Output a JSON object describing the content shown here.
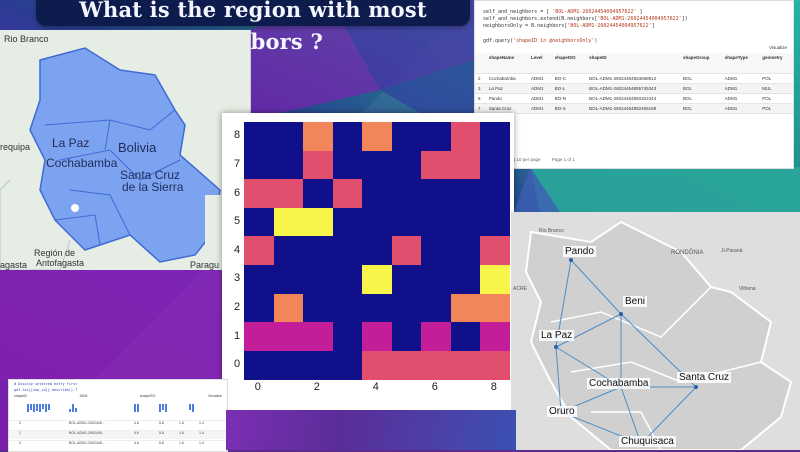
{
  "title": "What is the region with most neighbors ?",
  "map_top_left": {
    "labels": {
      "rio_branco": "Rio Branco",
      "la_paz": "La Paz",
      "bolivia": "Bolivia",
      "cochabamba": "Cochabamba",
      "santa_cruz": "Santa Cruz",
      "de_la_sierra": "de la Sierra",
      "arequipa": "requipa",
      "pagasta": "agasta",
      "region_antofagasta": "Región de",
      "antofagasta": "Antofagasta",
      "paragu": "Paragu"
    },
    "colors": {
      "fill": "#7ca3ef",
      "stroke": "#3f6ad6"
    }
  },
  "code_panel": {
    "lines": [
      [
        "self_and_neighbors = [ ",
        "'BOL-ADM1-26024454004957622'",
        " ]"
      ],
      [
        "self_and_neighbors.extend(B.neighbors[",
        "'BOL-ADM1-26024454004957622'",
        "])"
      ],
      [
        "neighborsOnly = B.neighbors[",
        "'BOL-ADM1-26024454004957622'",
        "]"
      ]
    ],
    "query": [
      "gdf.query(",
      "'shapeID in @neighborsOnly'",
      ")"
    ],
    "visualize_label": "Visualize",
    "columns": [
      "",
      "shapeName",
      "Level",
      "shapeISO",
      "shapeID",
      "shapeGroup",
      "shapeType",
      "geometry"
    ],
    "rows": [
      [
        "2",
        "Cochabamba",
        "ADM1",
        "BO-C",
        "BOL-ADM1-26024454563658912",
        "BOL",
        "ADM1",
        "POL"
      ],
      [
        "3",
        "La Paz",
        "ADM1",
        "BO-L",
        "BOL-ADM1-26024454955745343",
        "BOL",
        "ADM1",
        "MUL"
      ],
      [
        "5",
        "Pando",
        "ADM1",
        "BO-N",
        "BOL-ADM1-26024454850322344",
        "BOL",
        "ADM1",
        "POL"
      ],
      [
        "7",
        "Santa Cruz",
        "ADM1",
        "BO-S",
        "BOL-ADM1-26024454882466198",
        "BOL",
        "ADM1",
        "POL"
      ]
    ],
    "footer": "4 rows, showing 10 per page",
    "pager": "Page 1 of 1"
  },
  "chart_data": {
    "type": "heatmap",
    "title": "",
    "xlabel": "",
    "ylabel": "",
    "x_ticks": [
      "0",
      "2",
      "4",
      "6",
      "8"
    ],
    "y_ticks": [
      "0",
      "1",
      "2",
      "3",
      "4",
      "5",
      "6",
      "7",
      "8"
    ],
    "grid": false,
    "colormap": {
      "0": "#10108a",
      "1": "#c41d9a",
      "2": "#e24f6e",
      "3": "#f2855a",
      "4": "#f7f54a"
    },
    "matrix": [
      [
        0,
        0,
        3,
        0,
        3,
        0,
        0,
        2,
        0
      ],
      [
        0,
        0,
        2,
        0,
        0,
        0,
        2,
        2,
        0
      ],
      [
        2,
        2,
        0,
        2,
        0,
        0,
        0,
        0,
        0
      ],
      [
        0,
        4,
        4,
        0,
        0,
        0,
        0,
        0,
        0
      ],
      [
        2,
        0,
        0,
        0,
        0,
        2,
        0,
        0,
        2
      ],
      [
        0,
        0,
        0,
        0,
        4,
        0,
        0,
        0,
        4
      ],
      [
        0,
        3,
        0,
        0,
        0,
        0,
        0,
        3,
        3
      ],
      [
        1,
        1,
        1,
        0,
        1,
        0,
        1,
        0,
        1
      ],
      [
        0,
        0,
        0,
        0,
        2,
        2,
        2,
        2,
        2
      ]
    ]
  },
  "map_bottom_right": {
    "cities": [
      "Pando",
      "Beni",
      "La Paz",
      "Cochabamba",
      "Santa Cruz",
      "Oruro",
      "Chuquisaca"
    ],
    "small_labels": [
      "Rio Branco",
      "RONDÔNIA",
      "ACRE",
      "Vilhena",
      "Ji-Paraná"
    ]
  },
  "notebook_bottom_left": {
    "code_line1": "# Display selected entry first",
    "code_line2": "gdf.loc[[shp_id]].describe().T",
    "columns": [
      "",
      "shapeID",
      "ADM",
      "shapeISO",
      "",
      "",
      "",
      "",
      "Visualize"
    ],
    "rows": [
      [
        "0",
        "BOL-ADM1-2602445...",
        "4.6",
        "5.8",
        "1.6",
        "1.4"
      ],
      [
        "1",
        "BOL-ADM1-2602445...",
        "4.6",
        "5.8",
        "1.6",
        "1.4"
      ],
      [
        "2",
        "BOL-ADM1-2602445...",
        "4.6",
        "5.8",
        "1.6",
        "1.4"
      ]
    ]
  }
}
